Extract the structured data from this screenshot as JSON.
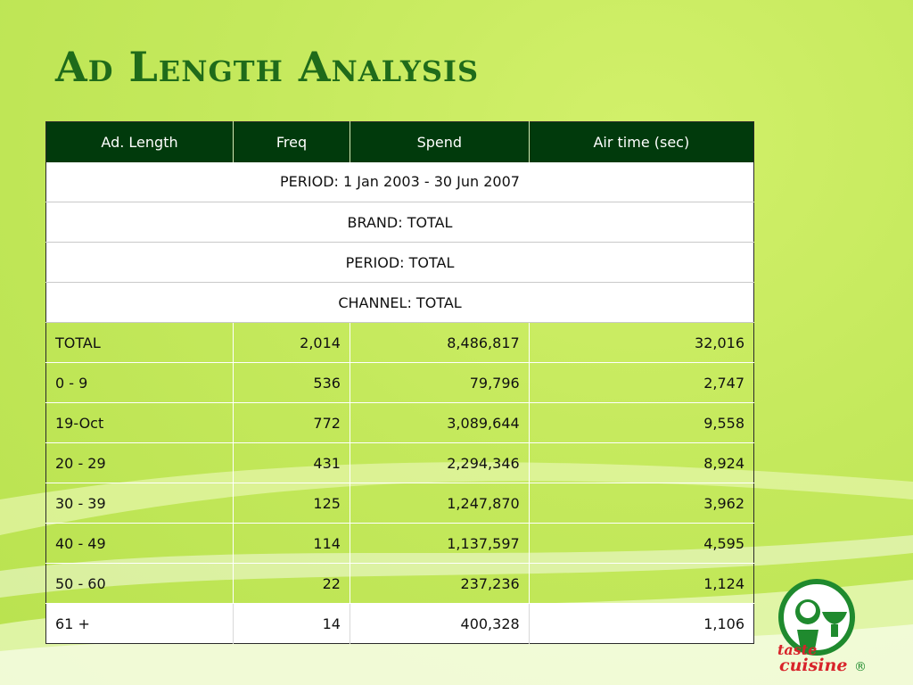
{
  "title": "Ad Length Analysis",
  "meta_rows": [
    "PERIOD: 1 Jan 2003 - 30 Jun 2007",
    "BRAND: TOTAL",
    "PERIOD: TOTAL",
    "CHANNEL: TOTAL"
  ],
  "columns": [
    "Ad. Length",
    "Freq",
    "Spend",
    "Air time (sec)"
  ],
  "rows": [
    [
      "TOTAL",
      "2,014",
      "8,486,817",
      "32,016"
    ],
    [
      "0 - 9",
      "536",
      "79,796",
      "2,747"
    ],
    [
      "19-Oct",
      "772",
      "3,089,644",
      "9,558"
    ],
    [
      "20 - 29",
      "431",
      "2,294,346",
      "8,924"
    ],
    [
      "30 - 39",
      "125",
      "1,247,870",
      "3,962"
    ],
    [
      "40 - 49",
      "114",
      "1,137,597",
      "4,595"
    ],
    [
      "50 - 60",
      "22",
      "237,236",
      "1,124"
    ],
    [
      "61 +",
      "14",
      "400,328",
      "1,106"
    ]
  ],
  "logo": {
    "text_top": "taste",
    "text_bottom": "cuisine",
    "mark": "®"
  },
  "colors": {
    "header_bg": "#013a0c",
    "title": "#1f6b1a",
    "background": "#c4e95c",
    "logo_red": "#d8232a",
    "logo_green": "#1f8a2e"
  }
}
